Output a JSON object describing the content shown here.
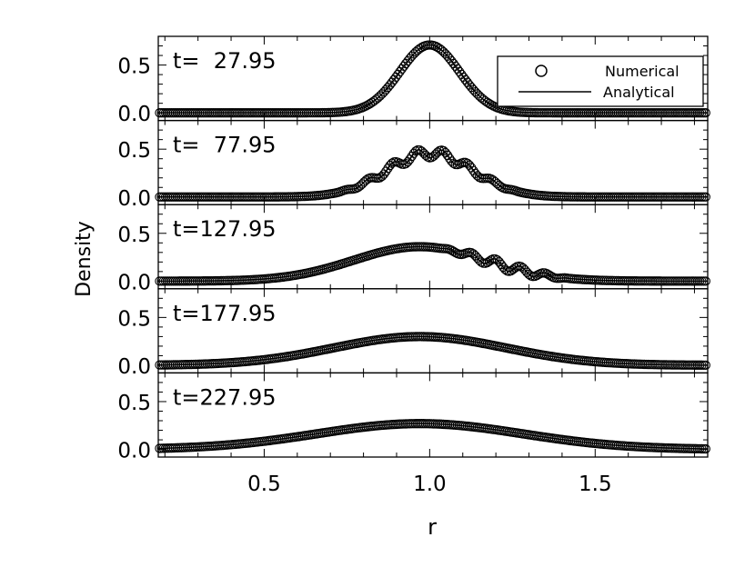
{
  "chart_data": {
    "type": "line",
    "xlabel": "r",
    "ylabel": "Density",
    "xlim": [
      0.18,
      1.84
    ],
    "ylim": [
      -0.08,
      0.8
    ],
    "x_ticks": [
      "0.5",
      "1.0",
      "1.5"
    ],
    "y_ticks": [
      "0.0",
      "0.5"
    ],
    "legend": {
      "placement": "top-right of first panel",
      "entries": [
        {
          "marker": "circle",
          "label": "Numerical"
        },
        {
          "marker": "line",
          "label": "Analytical"
        }
      ]
    },
    "panels": [
      {
        "label": "t=  27.95",
        "peak": 0.71,
        "center": 1.0,
        "width": 0.09,
        "ripple": {
          "amp": 0,
          "from": 0,
          "to": 0
        }
      },
      {
        "label": "t=  77.95",
        "peak": 0.46,
        "center": 1.0,
        "width": 0.13,
        "ripple": {
          "amp": 0.05,
          "from": 0.72,
          "to": 1.27
        }
      },
      {
        "label": "t=127.95",
        "peak": 0.36,
        "center": 0.97,
        "width": 0.2,
        "ripple": {
          "amp": 0.045,
          "from": 1.03,
          "to": 1.42
        }
      },
      {
        "label": "t=177.95",
        "peak": 0.3,
        "center": 0.97,
        "width": 0.26,
        "ripple": {
          "amp": 0,
          "from": 0,
          "to": 0
        }
      },
      {
        "label": "t=227.95",
        "peak": 0.27,
        "center": 0.97,
        "width": 0.31,
        "ripple": {
          "amp": 0,
          "from": 0,
          "to": 0
        }
      }
    ]
  }
}
